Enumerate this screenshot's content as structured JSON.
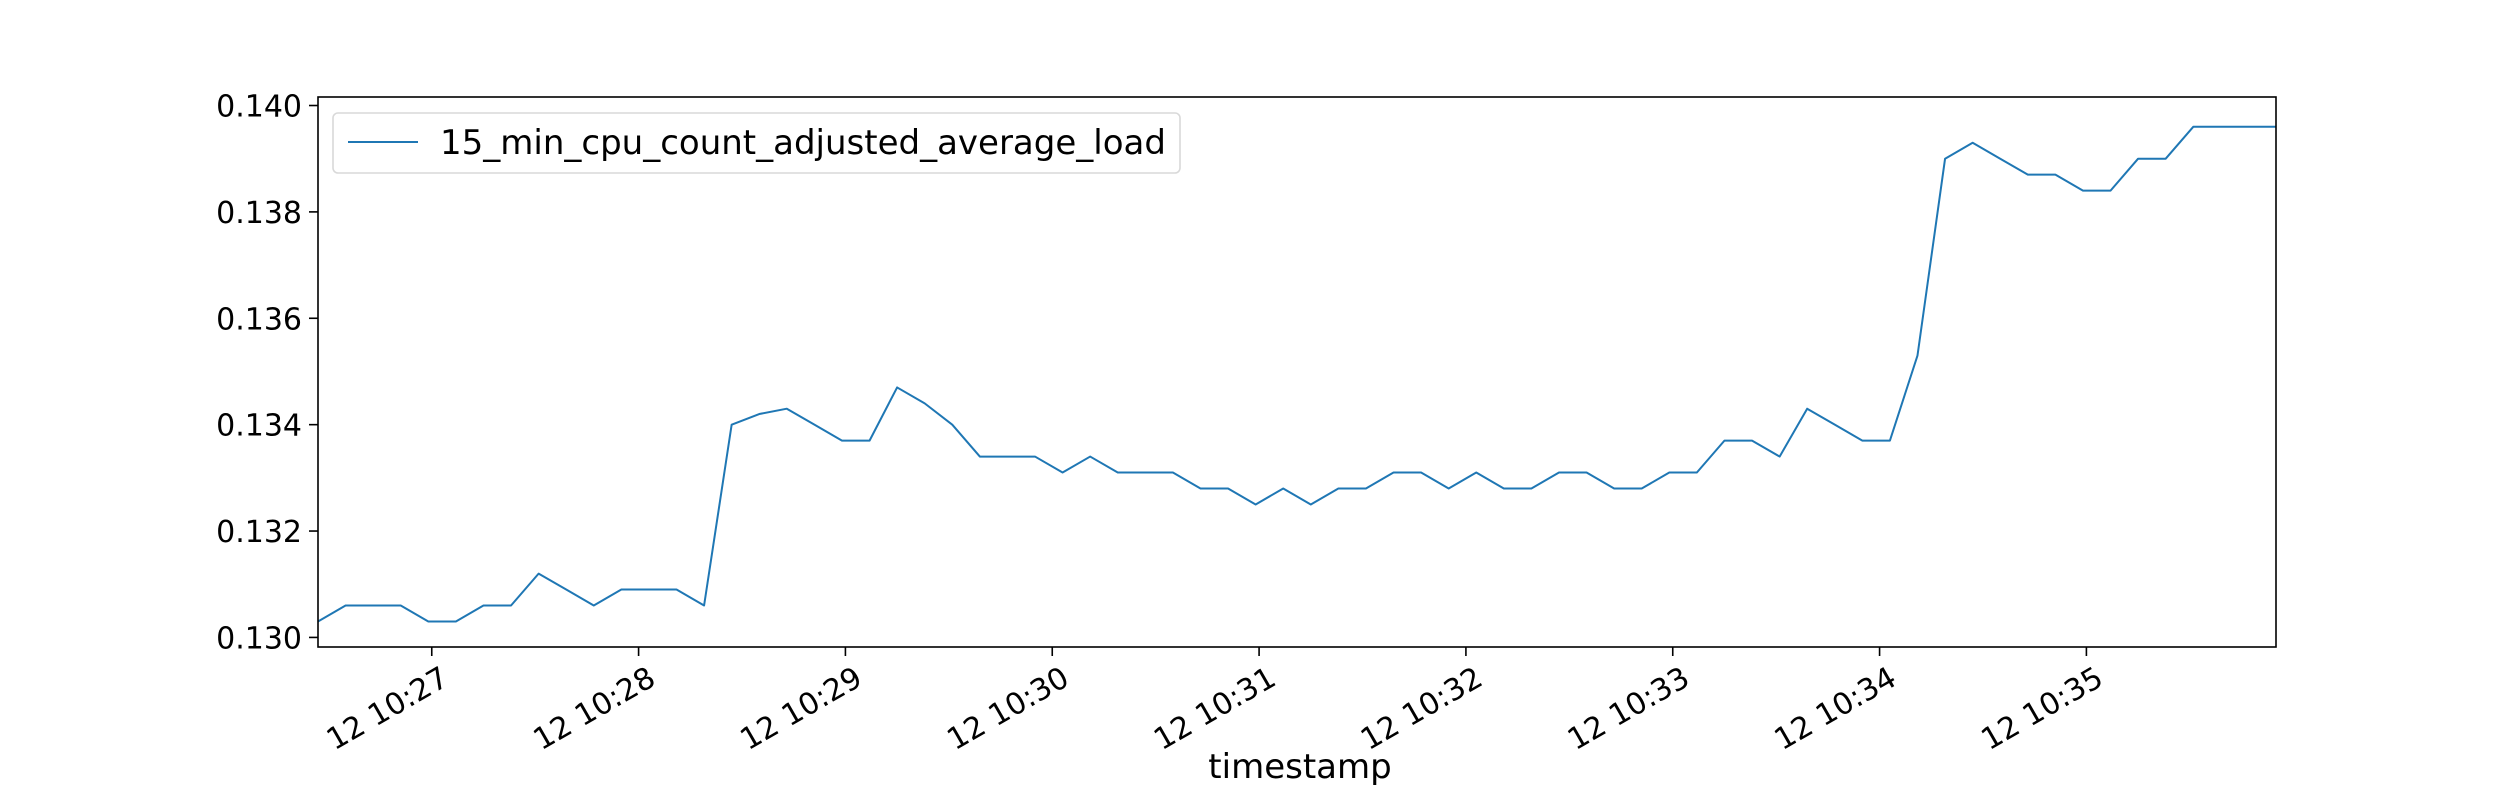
{
  "chart_data": {
    "type": "line",
    "title": "",
    "xlabel": "timestamp",
    "ylabel": "",
    "x_tick_labels": [
      "12 10:27",
      "12 10:28",
      "12 10:29",
      "12 10:30",
      "12 10:31",
      "12 10:32",
      "12 10:33",
      "12 10:34",
      "12 10:35"
    ],
    "y_ticks": [
      0.13,
      0.132,
      0.134,
      0.136,
      0.138,
      0.14
    ],
    "y_tick_labels": [
      "0.130",
      "0.132",
      "0.134",
      "0.136",
      "0.138",
      "0.140"
    ],
    "ylim": [
      0.12982,
      0.14016
    ],
    "grid": false,
    "legend_position": "upper-left",
    "series": [
      {
        "name": "15_min_cpu_count_adjusted_average_load",
        "color": "#1f77b4",
        "times": [
          "10:26:27",
          "10:26:35",
          "10:26:43",
          "10:26:51",
          "10:26:59",
          "10:27:07",
          "10:27:15",
          "10:27:23",
          "10:27:31",
          "10:27:39",
          "10:27:47",
          "10:27:55",
          "10:28:03",
          "10:28:11",
          "10:28:19",
          "10:28:27",
          "10:28:35",
          "10:28:43",
          "10:28:51",
          "10:28:59",
          "10:29:07",
          "10:29:15",
          "10:29:23",
          "10:29:31",
          "10:29:39",
          "10:29:47",
          "10:29:55",
          "10:30:03",
          "10:30:11",
          "10:30:19",
          "10:30:27",
          "10:30:35",
          "10:30:43",
          "10:30:51",
          "10:30:59",
          "10:31:07",
          "10:31:15",
          "10:31:23",
          "10:31:31",
          "10:31:39",
          "10:31:47",
          "10:31:55",
          "10:32:03",
          "10:32:11",
          "10:32:19",
          "10:32:27",
          "10:32:35",
          "10:32:43",
          "10:32:51",
          "10:32:59",
          "10:33:07",
          "10:33:15",
          "10:33:23",
          "10:33:31",
          "10:33:39",
          "10:33:47",
          "10:33:55",
          "10:34:03",
          "10:34:11",
          "10:34:19",
          "10:34:27",
          "10:34:35",
          "10:34:43",
          "10:34:51",
          "10:34:59",
          "10:35:07",
          "10:35:15",
          "10:35:23",
          "10:35:31",
          "10:35:39",
          "10:35:47",
          "10:35:55"
        ],
        "values": [
          0.1303,
          0.1306,
          0.1306,
          0.1306,
          0.1303,
          0.1303,
          0.1306,
          0.1306,
          0.1312,
          0.1309,
          0.1306,
          0.1309,
          0.1309,
          0.1309,
          0.1306,
          0.134,
          0.1342,
          0.1343,
          0.134,
          0.1337,
          0.1337,
          0.1347,
          0.1344,
          0.134,
          0.1334,
          0.1334,
          0.1334,
          0.1331,
          0.1334,
          0.1331,
          0.1331,
          0.1331,
          0.1328,
          0.1328,
          0.1325,
          0.1328,
          0.1325,
          0.1328,
          0.1328,
          0.1331,
          0.1331,
          0.1328,
          0.1331,
          0.1328,
          0.1328,
          0.1331,
          0.1331,
          0.1328,
          0.1328,
          0.1331,
          0.1331,
          0.1337,
          0.1337,
          0.1334,
          0.1343,
          0.134,
          0.1337,
          0.1337,
          0.1353,
          0.139,
          0.1393,
          0.139,
          0.1387,
          0.1387,
          0.1384,
          0.1384,
          0.139,
          0.139,
          0.1396,
          0.1396,
          0.1396,
          0.1396
        ]
      }
    ]
  }
}
